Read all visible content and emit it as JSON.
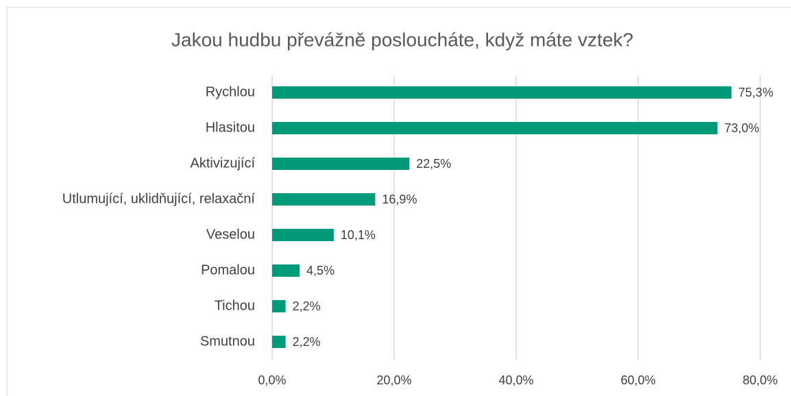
{
  "chart_data": {
    "type": "barh",
    "title": "Jakou hudbu převážně posloucháte, když máte vztek?",
    "categories": [
      "Rychlou",
      "Hlasitou",
      "Aktivizující",
      "Utlumující, uklidňující, relaxační",
      "Veselou",
      "Pomalou",
      "Tichou",
      "Smutnou"
    ],
    "values": [
      75.3,
      73.0,
      22.5,
      16.9,
      10.1,
      4.5,
      2.2,
      2.2
    ],
    "value_labels": [
      "75,3%",
      "73,0%",
      "22,5%",
      "16,9%",
      "10,1%",
      "4,5%",
      "2,2%",
      "2,2%"
    ],
    "color": "#009a78",
    "xlim": [
      0,
      80
    ],
    "xticks": [
      {
        "value": 0,
        "label": "0,0%"
      },
      {
        "value": 20,
        "label": "20,0%"
      },
      {
        "value": 40,
        "label": "40,0%"
      },
      {
        "value": 60,
        "label": "60,0%"
      },
      {
        "value": 80,
        "label": "80,0%"
      }
    ],
    "grid": true
  }
}
